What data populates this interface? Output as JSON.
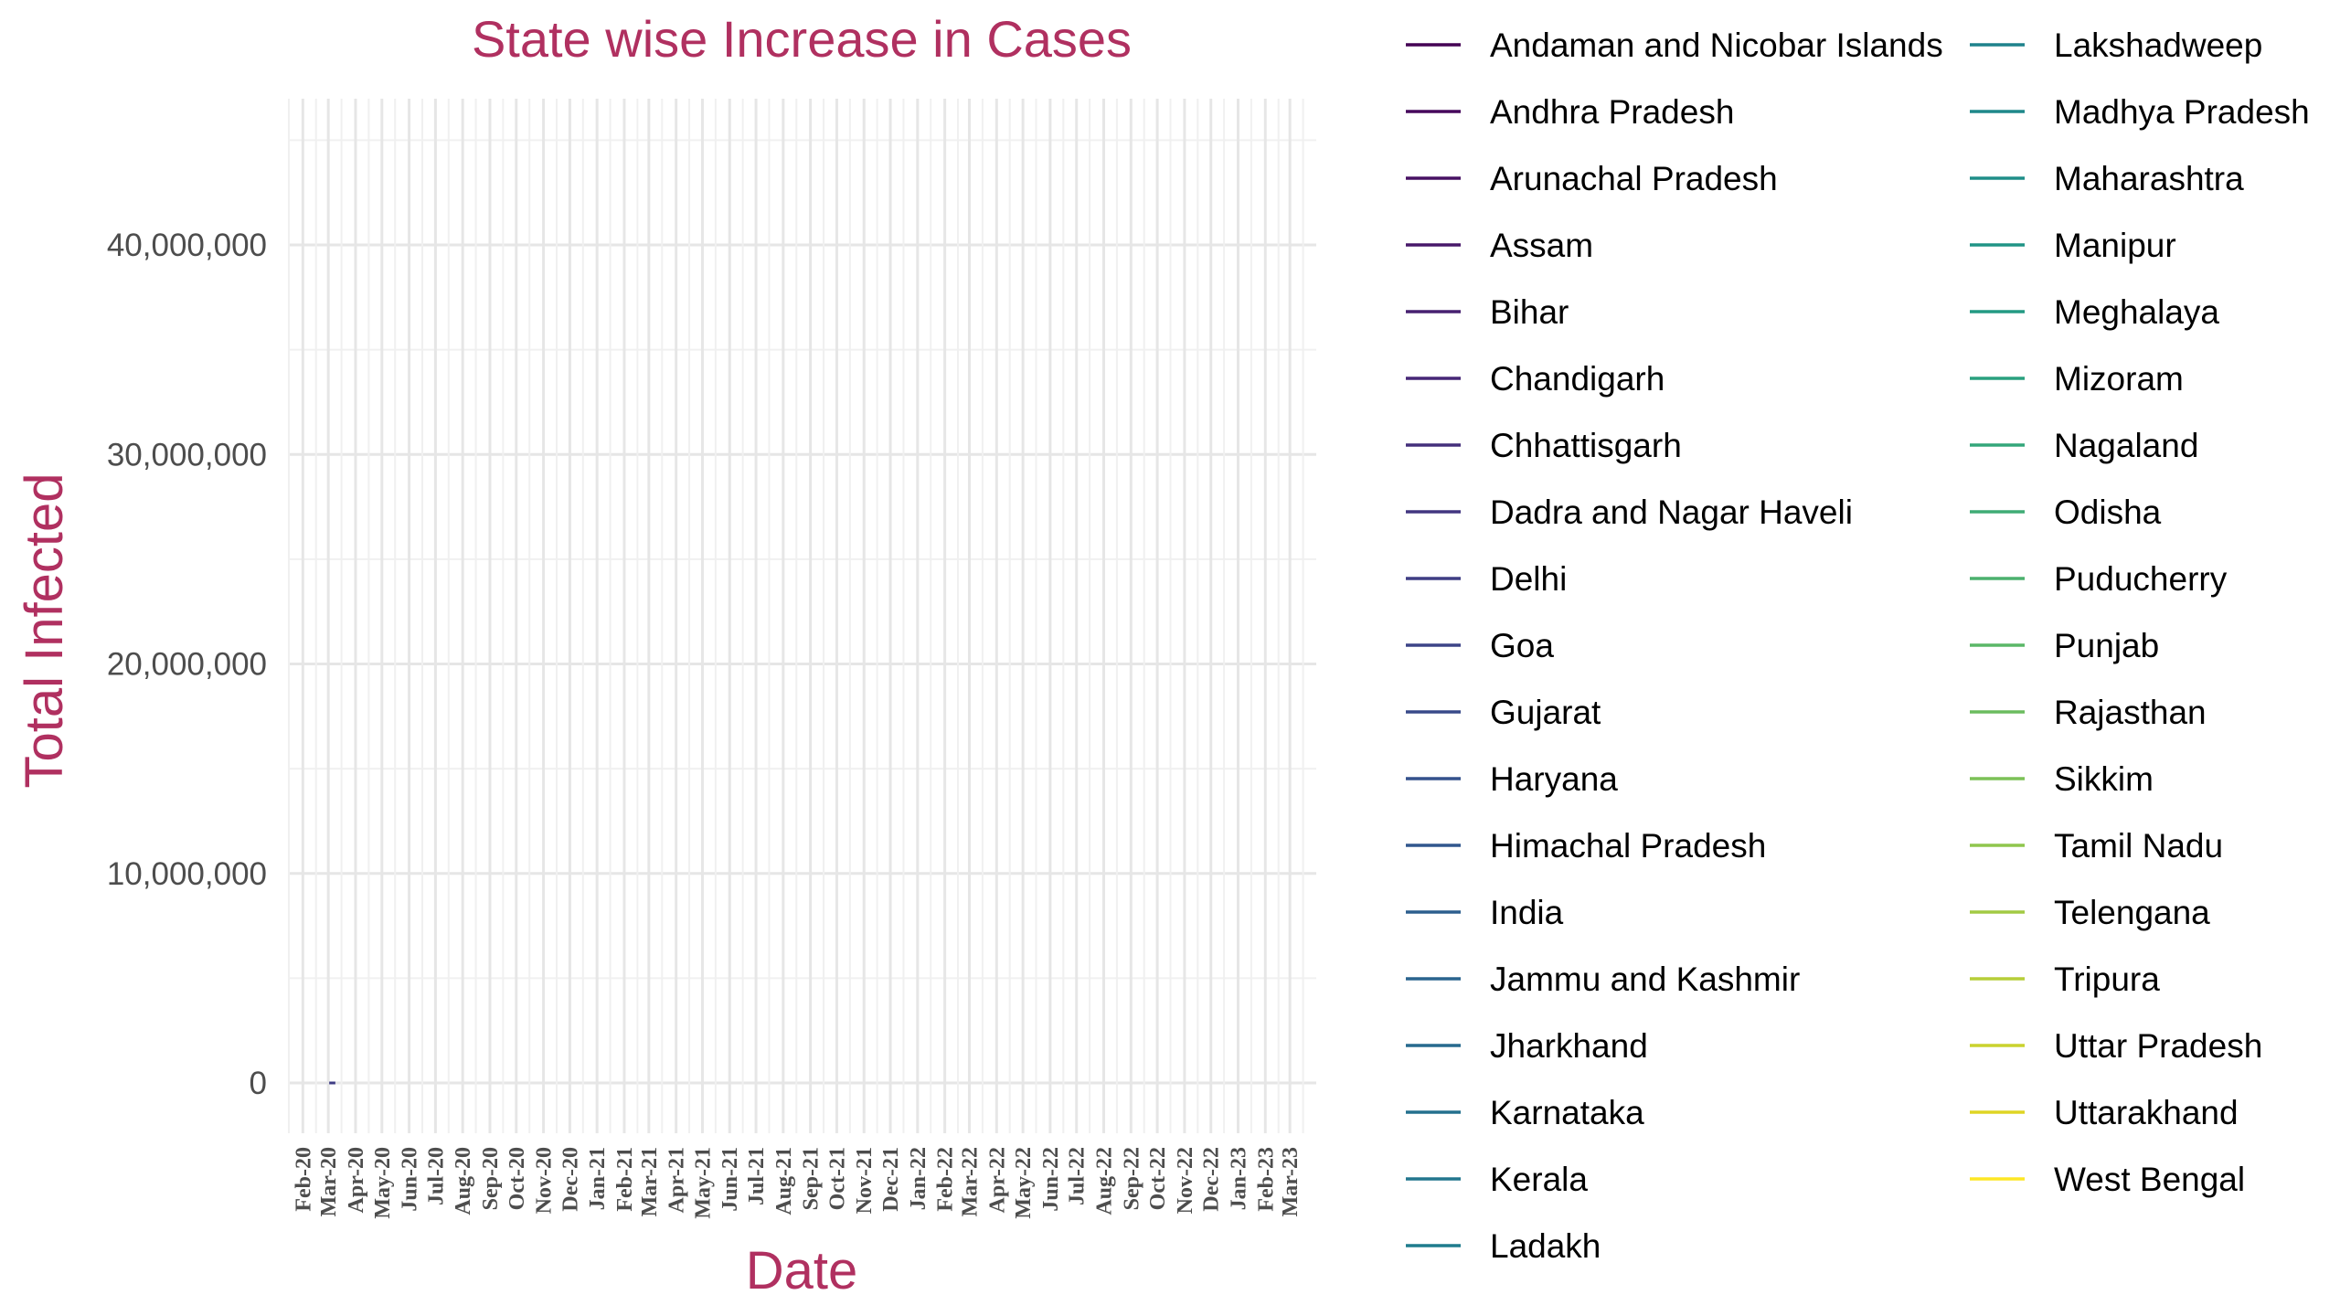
{
  "chart_data": {
    "type": "line",
    "title": "State wise Increase in Cases",
    "xlabel": "Date",
    "ylabel": "Total Infected",
    "title_color": "#b03060",
    "ylim": [
      -2400000,
      47000000
    ],
    "y_ticks": [
      0,
      10000000,
      20000000,
      30000000,
      40000000
    ],
    "y_tick_labels": [
      "0",
      "10,000,000",
      "20,000,000",
      "30,000,000",
      "40,000,000"
    ],
    "x_range": [
      "2020-01-15",
      "2023-03-31"
    ],
    "x_tick_labels": [
      "Feb-20",
      "Mar-20",
      "Apr-20",
      "May-20",
      "Jun-20",
      "Jul-20",
      "Aug-20",
      "Sep-20",
      "Oct-20",
      "Nov-20",
      "Dec-20",
      "Jan-21",
      "Feb-21",
      "Mar-21",
      "Apr-21",
      "May-21",
      "Jun-21",
      "Jul-21",
      "Aug-21",
      "Sep-21",
      "Oct-21",
      "Nov-21",
      "Dec-21",
      "Jan-22",
      "Feb-22",
      "Mar-22",
      "Apr-22",
      "May-22",
      "Jun-22",
      "Jul-22",
      "Aug-22",
      "Sep-22",
      "Oct-22",
      "Nov-22",
      "Dec-22",
      "Jan-23",
      "Feb-23",
      "Mar-23"
    ],
    "grid": true,
    "legend_position": "right",
    "series": [
      {
        "name": "Andaman and Nicobar Islands",
        "color": "#440154",
        "x": [],
        "values": []
      },
      {
        "name": "Andhra Pradesh",
        "color": "#46085c",
        "x": [],
        "values": []
      },
      {
        "name": "Arunachal Pradesh",
        "color": "#471163",
        "x": [],
        "values": []
      },
      {
        "name": "Assam",
        "color": "#48186a",
        "x": [],
        "values": []
      },
      {
        "name": "Bihar",
        "color": "#472070",
        "x": [],
        "values": []
      },
      {
        "name": "Chandigarh",
        "color": "#462777",
        "x": [],
        "values": []
      },
      {
        "name": "Chhattisgarh",
        "color": "#442f7b",
        "x": [],
        "values": []
      },
      {
        "name": "Dadra and Nagar Haveli",
        "color": "#423680",
        "x": [],
        "values": []
      },
      {
        "name": "Delhi",
        "color": "#3f3d84",
        "x": [
          "2020-03-02",
          "2020-03-09"
        ],
        "values": [
          0,
          0
        ]
      },
      {
        "name": "Goa",
        "color": "#3c4487",
        "x": [],
        "values": []
      },
      {
        "name": "Gujarat",
        "color": "#384a8a",
        "x": [],
        "values": []
      },
      {
        "name": "Haryana",
        "color": "#34518c",
        "x": [],
        "values": []
      },
      {
        "name": "Himachal Pradesh",
        "color": "#31578d",
        "x": [],
        "values": []
      },
      {
        "name": "India",
        "color": "#2d5e8e",
        "x": [],
        "values": []
      },
      {
        "name": "Jammu and Kashmir",
        "color": "#2a648e",
        "x": [],
        "values": []
      },
      {
        "name": "Jharkhand",
        "color": "#276a8e",
        "x": [],
        "values": []
      },
      {
        "name": "Karnataka",
        "color": "#24708e",
        "x": [],
        "values": []
      },
      {
        "name": "Kerala",
        "color": "#22768e",
        "x": [],
        "values": []
      },
      {
        "name": "Ladakh",
        "color": "#1f7c8d",
        "x": [],
        "values": []
      },
      {
        "name": "Lakshadweep",
        "color": "#1e828c",
        "x": [],
        "values": []
      },
      {
        "name": "Madhya Pradesh",
        "color": "#1f888a",
        "x": [],
        "values": []
      },
      {
        "name": "Maharashtra",
        "color": "#1f8e88",
        "x": [],
        "values": []
      },
      {
        "name": "Manipur",
        "color": "#209486",
        "x": [],
        "values": []
      },
      {
        "name": "Meghalaya",
        "color": "#239a83",
        "x": [],
        "values": []
      },
      {
        "name": "Mizoram",
        "color": "#2aa07f",
        "x": [],
        "values": []
      },
      {
        "name": "Nagaland",
        "color": "#33a67a",
        "x": [],
        "values": []
      },
      {
        "name": "Odisha",
        "color": "#3fac75",
        "x": [],
        "values": []
      },
      {
        "name": "Puducherry",
        "color": "#4cb16e",
        "x": [],
        "values": []
      },
      {
        "name": "Punjab",
        "color": "#5ab767",
        "x": [],
        "values": []
      },
      {
        "name": "Rajasthan",
        "color": "#6bbc5f",
        "x": [],
        "values": []
      },
      {
        "name": "Sikkim",
        "color": "#7cc157",
        "x": [],
        "values": []
      },
      {
        "name": "Tamil Nadu",
        "color": "#8fc64d",
        "x": [],
        "values": []
      },
      {
        "name": "Telengana",
        "color": "#a2ca44",
        "x": [],
        "values": []
      },
      {
        "name": "Tripura",
        "color": "#b6ce39",
        "x": [],
        "values": []
      },
      {
        "name": "Uttar Pradesh",
        "color": "#cad22e",
        "x": [],
        "values": []
      },
      {
        "name": "Uttarakhand",
        "color": "#dfd524",
        "x": [],
        "values": []
      },
      {
        "name": "West Bengal",
        "color": "#fde725",
        "x": [],
        "values": []
      }
    ]
  }
}
